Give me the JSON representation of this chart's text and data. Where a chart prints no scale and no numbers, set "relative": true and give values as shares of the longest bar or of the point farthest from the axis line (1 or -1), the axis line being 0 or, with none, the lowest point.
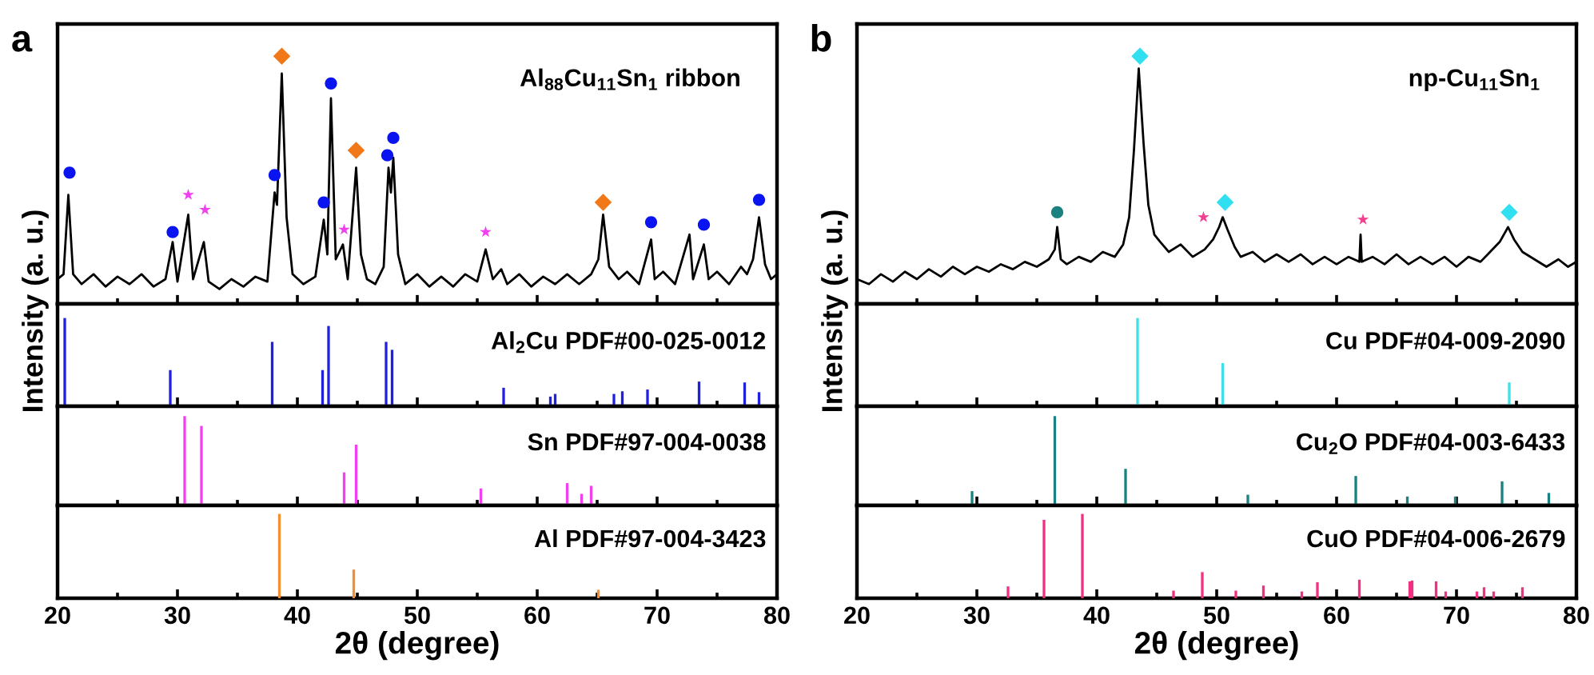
{
  "chart_data": [
    {
      "type": "line",
      "title": "a",
      "ylabel": "Intensity (a. u.)",
      "annotations": [
        "Al$_{88}$Cu$_{11}$Sn$_{1}$ ribbon"
      ],
      "relative": true,
      "xlim": [
        20,
        80
      ],
      "xticks": [
        20,
        30,
        40,
        50,
        60,
        70,
        80
      ],
      "tick_labels": false,
      "grid": false,
      "legend": false,
      "series": [
        {
          "color": "#000000",
          "x": [
            20,
            20.5,
            20.9,
            21.3,
            22,
            23,
            24,
            25,
            26,
            27,
            28,
            29,
            29.6,
            30.0,
            30.9,
            31.3,
            32.2,
            32.6,
            33.5,
            34.5,
            35.5,
            36.5,
            37.5,
            38.1,
            38.3,
            38.7,
            39.1,
            39.6,
            40.5,
            41.5,
            42.2,
            42.5,
            42.8,
            43.2,
            43.8,
            44.2,
            44.9,
            45.3,
            45.8,
            46.5,
            47.2,
            47.6,
            47.8,
            48.0,
            48.4,
            49,
            50,
            51,
            52,
            53,
            54,
            55,
            55.7,
            56.3,
            57,
            57.5,
            58.5,
            59.5,
            60.5,
            61.5,
            62.5,
            63.5,
            64.5,
            65.1,
            65.5,
            66,
            66.8,
            67.5,
            68.5,
            69.5,
            69.8,
            70.5,
            71.5,
            72.7,
            73,
            73.9,
            74.3,
            75,
            76,
            77,
            77.5,
            78.0,
            78.5,
            79,
            79.5,
            80
          ],
          "values": [
            0.1,
            0.12,
            0.44,
            0.12,
            0.08,
            0.12,
            0.07,
            0.11,
            0.08,
            0.12,
            0.07,
            0.1,
            0.25,
            0.09,
            0.36,
            0.1,
            0.25,
            0.09,
            0.06,
            0.1,
            0.07,
            0.11,
            0.09,
            0.45,
            0.4,
            0.93,
            0.35,
            0.12,
            0.08,
            0.11,
            0.34,
            0.2,
            0.83,
            0.18,
            0.24,
            0.1,
            0.55,
            0.2,
            0.1,
            0.08,
            0.15,
            0.55,
            0.45,
            0.59,
            0.2,
            0.08,
            0.12,
            0.07,
            0.11,
            0.07,
            0.12,
            0.09,
            0.22,
            0.1,
            0.14,
            0.08,
            0.12,
            0.07,
            0.11,
            0.08,
            0.12,
            0.08,
            0.12,
            0.18,
            0.36,
            0.15,
            0.1,
            0.13,
            0.08,
            0.26,
            0.1,
            0.13,
            0.08,
            0.28,
            0.1,
            0.24,
            0.1,
            0.13,
            0.08,
            0.15,
            0.12,
            0.18,
            0.35,
            0.16,
            0.1,
            0.12
          ]
        },
        {
          "type": "scatter",
          "marker": "circle",
          "color": "#0a14f0",
          "x": [
            21.0,
            29.6,
            38.1,
            42.2,
            42.8,
            47.5,
            48.0,
            69.5,
            73.9,
            78.5
          ],
          "values": [
            0.53,
            0.29,
            0.52,
            0.41,
            0.89,
            0.6,
            0.67,
            0.33,
            0.32,
            0.42
          ]
        },
        {
          "type": "scatter",
          "marker": "diamond",
          "color": "#f07818",
          "x": [
            38.7,
            44.9,
            65.5
          ],
          "values": [
            1.0,
            0.62,
            0.41
          ]
        },
        {
          "type": "scatter",
          "marker": "star",
          "color": "#f040f0",
          "x": [
            30.9,
            32.3,
            43.9,
            55.7
          ],
          "values": [
            0.44,
            0.38,
            0.3,
            0.29
          ]
        }
      ]
    },
    {
      "type": "bar",
      "annotations": [
        "Al$_{2}$Cu PDF#00-025-0012"
      ],
      "relative": true,
      "xlim": [
        20,
        80
      ],
      "xticks": [
        20,
        30,
        40,
        50,
        60,
        70,
        80
      ],
      "tick_labels": false,
      "grid": false,
      "color": "#2020e0",
      "x": [
        20.6,
        29.4,
        37.9,
        42.1,
        42.6,
        47.4,
        47.9,
        57.2,
        61.1,
        61.5,
        66.4,
        67.1,
        69.2,
        73.5,
        77.3,
        78.5
      ],
      "values": [
        1.0,
        0.41,
        0.73,
        0.41,
        0.91,
        0.73,
        0.64,
        0.21,
        0.11,
        0.14,
        0.14,
        0.17,
        0.19,
        0.28,
        0.27,
        0.16
      ]
    },
    {
      "type": "bar",
      "annotations": [
        "Sn PDF#97-004-0038"
      ],
      "relative": true,
      "xlim": [
        20,
        80
      ],
      "xticks": [
        20,
        30,
        40,
        50,
        60,
        70,
        80
      ],
      "tick_labels": false,
      "grid": false,
      "color": "#f040f0",
      "x": [
        30.6,
        32.0,
        43.9,
        44.9,
        55.3,
        62.5,
        63.7,
        64.5
      ],
      "values": [
        1.0,
        0.89,
        0.37,
        0.68,
        0.19,
        0.25,
        0.13,
        0.22
      ]
    },
    {
      "type": "bar",
      "xlabel": "2θ (degree)",
      "annotations": [
        "Al PDF#97-004-3423"
      ],
      "relative": true,
      "xlim": [
        20,
        80
      ],
      "xticks": [
        20,
        30,
        40,
        50,
        60,
        70,
        80
      ],
      "tick_labels": "x",
      "grid": false,
      "color": "#f09030",
      "x": [
        38.5,
        44.7,
        65.1
      ],
      "values": [
        1.0,
        0.34,
        0.1
      ]
    },
    {
      "type": "line",
      "title": "b",
      "ylabel": "Intensity (a. u.)",
      "annotations": [
        "np-Cu$_{11}$Sn$_{1}$"
      ],
      "relative": true,
      "xlim": [
        20,
        80
      ],
      "xticks": [
        20,
        30,
        40,
        50,
        60,
        70,
        80
      ],
      "tick_labels": false,
      "grid": false,
      "legend": false,
      "series": [
        {
          "color": "#000000",
          "x": [
            20,
            21,
            22,
            23,
            24,
            25,
            26,
            27,
            28,
            29,
            30,
            31,
            32,
            33,
            34,
            35,
            36,
            36.5,
            36.7,
            37.0,
            37.5,
            38.5,
            39.5,
            40.5,
            41.5,
            42.2,
            42.7,
            43.1,
            43.5,
            43.9,
            44.3,
            44.8,
            45.3,
            46,
            47,
            48,
            49,
            49.7,
            50.2,
            50.5,
            50.9,
            51.5,
            52,
            53,
            54,
            55,
            56,
            57,
            58,
            59,
            60,
            61,
            61.9,
            62.0,
            62.1,
            63,
            64,
            65,
            66,
            67,
            68,
            69,
            70,
            71,
            72,
            72.8,
            73.6,
            74.3,
            74.8,
            75.5,
            76.5,
            77.5,
            78.5,
            79.3,
            80
          ],
          "values": [
            0.1,
            0.08,
            0.12,
            0.09,
            0.13,
            0.1,
            0.14,
            0.11,
            0.15,
            0.12,
            0.15,
            0.13,
            0.16,
            0.14,
            0.17,
            0.15,
            0.18,
            0.22,
            0.31,
            0.18,
            0.16,
            0.19,
            0.17,
            0.21,
            0.19,
            0.24,
            0.35,
            0.62,
            0.95,
            0.65,
            0.4,
            0.28,
            0.25,
            0.21,
            0.24,
            0.19,
            0.22,
            0.26,
            0.31,
            0.35,
            0.3,
            0.23,
            0.19,
            0.21,
            0.17,
            0.2,
            0.17,
            0.2,
            0.16,
            0.19,
            0.16,
            0.19,
            0.17,
            0.28,
            0.17,
            0.19,
            0.16,
            0.2,
            0.16,
            0.19,
            0.16,
            0.19,
            0.15,
            0.19,
            0.17,
            0.21,
            0.25,
            0.31,
            0.26,
            0.21,
            0.18,
            0.15,
            0.18,
            0.15,
            0.17
          ]
        },
        {
          "type": "scatter",
          "marker": "circle",
          "color": "#1a8080",
          "x": [
            36.7
          ],
          "values": [
            0.37
          ]
        },
        {
          "type": "scatter",
          "marker": "diamond",
          "color": "#30e0f0",
          "x": [
            43.6,
            50.7,
            74.4
          ],
          "values": [
            1.0,
            0.41,
            0.37
          ]
        },
        {
          "type": "scatter",
          "marker": "star",
          "color": "#f04090",
          "x": [
            48.9,
            62.2
          ],
          "values": [
            0.35,
            0.34
          ]
        }
      ]
    },
    {
      "type": "bar",
      "annotations": [
        "Cu PDF#04-009-2090"
      ],
      "relative": true,
      "xlim": [
        20,
        80
      ],
      "xticks": [
        20,
        30,
        40,
        50,
        60,
        70,
        80
      ],
      "tick_labels": false,
      "grid": false,
      "color": "#40e0e8",
      "x": [
        43.4,
        50.5,
        74.4
      ],
      "values": [
        1.0,
        0.49,
        0.27
      ]
    },
    {
      "type": "bar",
      "annotations": [
        "Cu$_{2}$O PDF#04-003-6433"
      ],
      "relative": true,
      "xlim": [
        20,
        80
      ],
      "xticks": [
        20,
        30,
        40,
        50,
        60,
        70,
        80
      ],
      "tick_labels": false,
      "grid": false,
      "color": "#1a8080",
      "x": [
        29.6,
        36.5,
        42.4,
        52.6,
        61.6,
        65.9,
        69.9,
        73.8,
        77.7
      ],
      "values": [
        0.16,
        1.0,
        0.41,
        0.12,
        0.33,
        0.1,
        0.1,
        0.27,
        0.14
      ]
    },
    {
      "type": "bar",
      "xlabel": "2θ (degree)",
      "annotations": [
        "CuO PDF#04-006-2679"
      ],
      "relative": true,
      "xlim": [
        20,
        80
      ],
      "xticks": [
        20,
        30,
        40,
        50,
        60,
        70,
        80
      ],
      "tick_labels": "x",
      "grid": false,
      "color": "#f03080",
      "x": [
        32.6,
        35.6,
        38.8,
        46.4,
        48.8,
        51.6,
        53.9,
        57.1,
        58.4,
        61.9,
        66.1,
        66.3,
        68.3,
        69.1,
        71.7,
        72.3,
        73.1,
        75.5
      ],
      "values": [
        0.14,
        0.93,
        1.0,
        0.09,
        0.31,
        0.09,
        0.15,
        0.08,
        0.19,
        0.22,
        0.2,
        0.21,
        0.2,
        0.08,
        0.08,
        0.13,
        0.08,
        0.13
      ]
    }
  ]
}
